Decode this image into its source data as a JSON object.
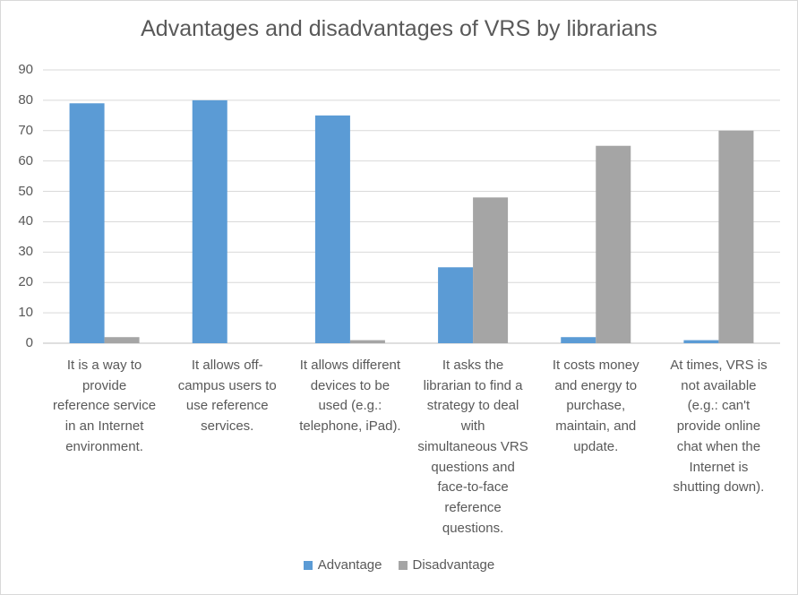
{
  "chart_data": {
    "type": "bar",
    "title": "Advantages and disadvantages of VRS by librarians",
    "categories": [
      "It is a way to\nprovide\nreference service\nin an Internet\nenvironment.",
      "It allows off-\ncampus users to\nuse reference\nservices.",
      "It allows different\ndevices to be\nused (e.g.:\ntelephone, iPad).",
      "It asks the\nlibrarian to find a\nstrategy to deal\nwith\nsimultaneous VRS\nquestions and\nface-to-face\nreference\nquestions.",
      "It costs money\nand energy to\npurchase,\nmaintain, and\nupdate.",
      "At times, VRS is\nnot available\n(e.g.: can't\nprovide online\nchat when the\nInternet is\nshutting down)."
    ],
    "series": [
      {
        "name": "Advantage",
        "color": "#5b9bd5",
        "values": [
          79,
          80,
          75,
          25,
          2,
          1
        ]
      },
      {
        "name": "Disadvantage",
        "color": "#a5a5a5",
        "values": [
          2,
          0,
          1,
          48,
          65,
          70
        ]
      }
    ],
    "ylim": [
      0,
      90
    ],
    "yticks": [
      "0",
      "10",
      "20",
      "30",
      "40",
      "50",
      "60",
      "70",
      "80",
      "90"
    ],
    "grid": true,
    "legend": "bottom"
  }
}
